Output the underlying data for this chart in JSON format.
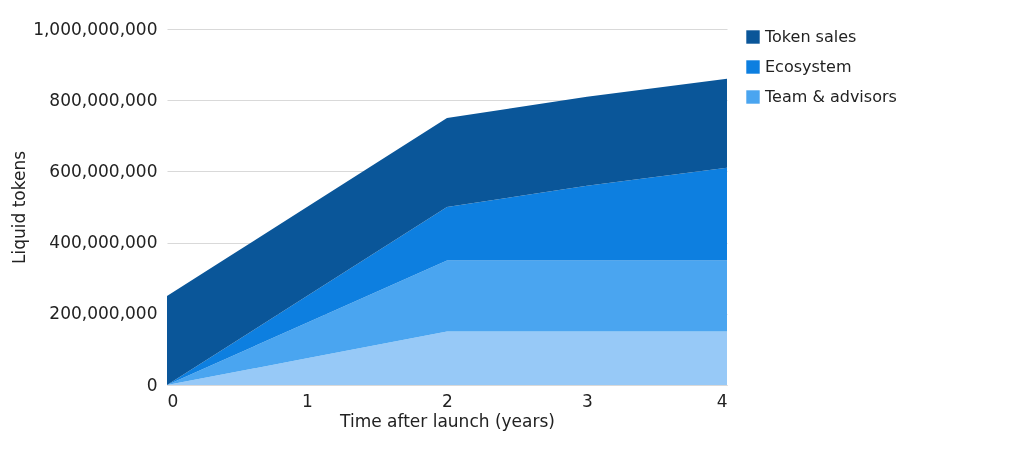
{
  "chart_data": {
    "type": "area",
    "stacked": true,
    "xlabel": "Time after launch (years)",
    "ylabel": "Liquid tokens",
    "x": [
      0,
      1,
      2,
      3,
      4
    ],
    "xlim": [
      0,
      4
    ],
    "xticks": [
      0,
      1,
      2,
      3,
      4
    ],
    "ylim": [
      0,
      1000000000
    ],
    "yticks": [
      0,
      {
        "value": 200000000,
        "label": "200,000,000"
      },
      {
        "value": 400000000,
        "label": "400,000,000"
      },
      {
        "value": 600000000,
        "label": "600,000,000"
      },
      {
        "value": 800000000,
        "label": "800,000,000"
      },
      {
        "value": 1000000000,
        "label": "1,000,000,000"
      }
    ],
    "grid": "y",
    "legend": "right",
    "series": [
      {
        "color": "#97c9f7",
        "values": [
          0,
          75000000,
          150000000,
          150000000,
          150000000
        ]
      },
      {
        "name": "Team & advisors",
        "color": "#4aa5f0",
        "values": [
          0,
          100000000,
          200000000,
          200000000,
          200000000
        ]
      },
      {
        "name": "Ecosystem",
        "color": "#0d7fe0",
        "values": [
          0,
          75000000,
          150000000,
          210000000,
          260000000
        ]
      },
      {
        "name": "Token sales",
        "color": "#0a5699",
        "values": [
          250000000,
          250000000,
          250000000,
          250000000,
          250000000
        ]
      }
    ]
  }
}
